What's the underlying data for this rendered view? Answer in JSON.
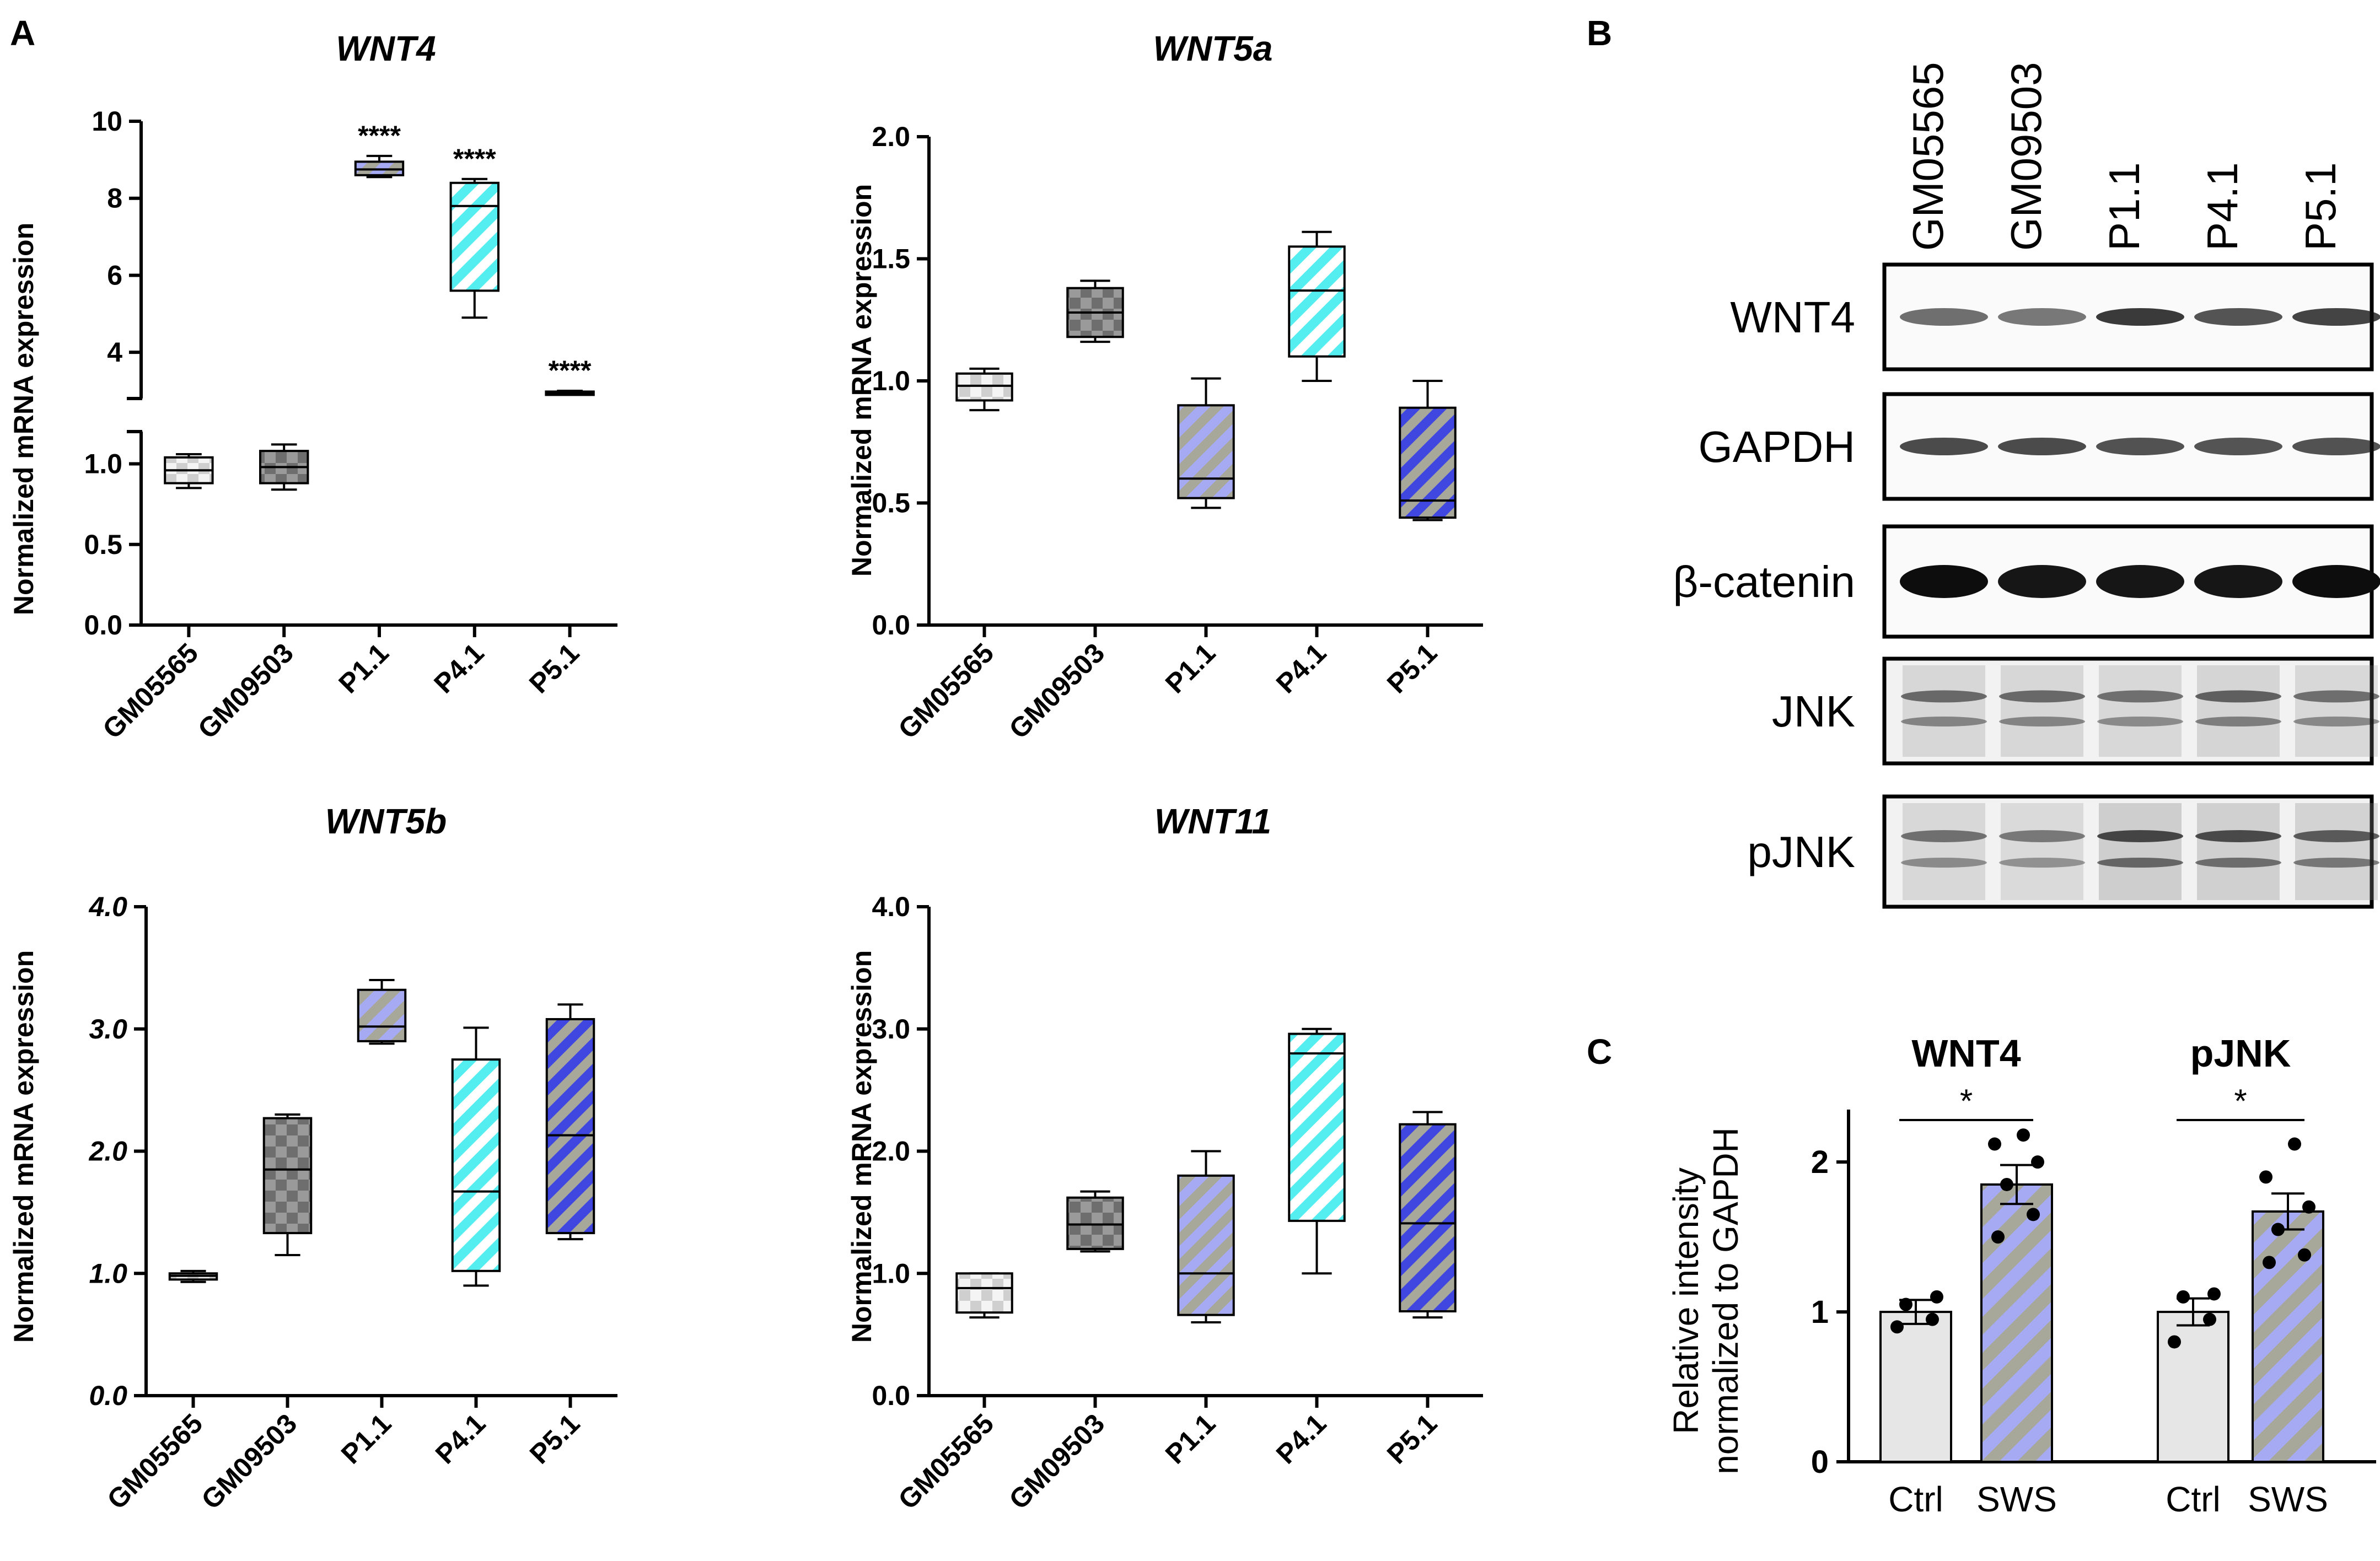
{
  "panel_labels": [
    "A",
    "B",
    "C"
  ],
  "colors": {
    "ctrl1": "#e9e9e9",
    "ctrl2": "#8a8a8a",
    "p11": "#a6aaf2",
    "p41": "#55eef0",
    "p51": "#3f47e0",
    "stripe_grey": "#a7a79a",
    "bar_ctrl": "#e6e6e6",
    "axis": "#000000"
  },
  "chart_data": [
    {
      "type": "box",
      "id": "wnt4",
      "title": "WNT4",
      "ylabel": "Normalized mRNA expression",
      "categories": [
        "GM05565",
        "GM09503",
        "P1.1",
        "P4.1",
        "P5.1"
      ],
      "axis_break": {
        "lower_range": [
          0,
          1.2
        ],
        "upper_range": [
          2.8,
          10
        ]
      },
      "yticks_lower": [
        "0.0",
        "0.5",
        "1.0"
      ],
      "yticks_upper": [
        "4",
        "6",
        "8",
        "10"
      ],
      "boxes": [
        {
          "min": 0.85,
          "q1": 0.88,
          "median": 0.96,
          "q3": 1.04,
          "max": 1.06
        },
        {
          "min": 0.84,
          "q1": 0.88,
          "median": 0.98,
          "q3": 1.08,
          "max": 1.12
        },
        {
          "min": 8.55,
          "q1": 8.6,
          "median": 8.75,
          "q3": 8.95,
          "max": 9.1
        },
        {
          "min": 4.9,
          "q1": 5.6,
          "median": 7.8,
          "q3": 8.4,
          "max": 8.5
        },
        {
          "min": 2.9,
          "q1": 2.92,
          "median": 2.95,
          "q3": 2.98,
          "max": 3.0
        }
      ],
      "annotations": [
        "",
        "",
        "****",
        "****",
        "****"
      ]
    },
    {
      "type": "box",
      "id": "wnt5a",
      "title": "WNT5a",
      "ylabel": "Normalized mRNA expression",
      "categories": [
        "GM05565",
        "GM09503",
        "P1.1",
        "P4.1",
        "P5.1"
      ],
      "ylim": [
        0,
        2.0
      ],
      "yticks": [
        "0.0",
        "0.5",
        "1.0",
        "1.5",
        "2.0"
      ],
      "boxes": [
        {
          "min": 0.88,
          "q1": 0.92,
          "median": 0.98,
          "q3": 1.03,
          "max": 1.05
        },
        {
          "min": 1.16,
          "q1": 1.18,
          "median": 1.28,
          "q3": 1.38,
          "max": 1.41
        },
        {
          "min": 0.48,
          "q1": 0.52,
          "median": 0.6,
          "q3": 0.9,
          "max": 1.01
        },
        {
          "min": 1.0,
          "q1": 1.1,
          "median": 1.37,
          "q3": 1.55,
          "max": 1.61
        },
        {
          "min": 0.43,
          "q1": 0.44,
          "median": 0.51,
          "q3": 0.89,
          "max": 1.0
        }
      ]
    },
    {
      "type": "box",
      "id": "wnt5b",
      "title": "WNT5b",
      "ylabel": "Normalized mRNA expression",
      "categories": [
        "GM05565",
        "GM09503",
        "P1.1",
        "P4.1",
        "P5.1"
      ],
      "ylim": [
        0,
        4.0
      ],
      "yticks": [
        "0.0",
        "1.0",
        "2.0",
        "3.0",
        "4.0"
      ],
      "boxes": [
        {
          "min": 0.93,
          "q1": 0.95,
          "median": 0.98,
          "q3": 1.0,
          "max": 1.02
        },
        {
          "min": 1.15,
          "q1": 1.33,
          "median": 1.85,
          "q3": 2.27,
          "max": 2.3
        },
        {
          "min": 2.88,
          "q1": 2.9,
          "median": 3.02,
          "q3": 3.32,
          "max": 3.4
        },
        {
          "min": 0.9,
          "q1": 1.02,
          "median": 1.67,
          "q3": 2.75,
          "max": 3.01
        },
        {
          "min": 1.28,
          "q1": 1.33,
          "median": 2.13,
          "q3": 3.08,
          "max": 3.2
        }
      ]
    },
    {
      "type": "box",
      "id": "wnt11",
      "title": "WNT11",
      "ylabel": "Normalized mRNA expression",
      "categories": [
        "GM05565",
        "GM09503",
        "P1.1",
        "P4.1",
        "P5.1"
      ],
      "ylim": [
        0,
        4.0
      ],
      "yticks": [
        "0.0",
        "1.0",
        "2.0",
        "3.0",
        "4.0"
      ],
      "boxes": [
        {
          "min": 0.64,
          "q1": 0.68,
          "median": 0.88,
          "q3": 1.0,
          "max": 1.0
        },
        {
          "min": 1.18,
          "q1": 1.2,
          "median": 1.4,
          "q3": 1.62,
          "max": 1.67
        },
        {
          "min": 0.6,
          "q1": 0.66,
          "median": 1.0,
          "q3": 1.8,
          "max": 2.0
        },
        {
          "min": 1.0,
          "q1": 1.43,
          "median": 2.8,
          "q3": 2.96,
          "max": 3.0
        },
        {
          "min": 0.64,
          "q1": 0.69,
          "median": 1.41,
          "q3": 2.22,
          "max": 2.32
        }
      ]
    },
    {
      "type": "bar",
      "id": "quant",
      "ylabel_lines": [
        "Relative intensity",
        "normalized to GAPDH"
      ],
      "ylim": [
        0,
        2.35
      ],
      "yticks": [
        "0",
        "1",
        "2"
      ],
      "groups": [
        {
          "title": "WNT4",
          "significance": "*",
          "bars": [
            {
              "label": "Ctrl",
              "value": 1.0,
              "sem": 0.08,
              "points": [
                0.9,
                0.95,
                1.05,
                1.1
              ]
            },
            {
              "label": "SWS",
              "value": 1.85,
              "sem": 0.13,
              "points": [
                1.5,
                1.65,
                1.85,
                2.0,
                2.12,
                2.18
              ]
            }
          ]
        },
        {
          "title": "pJNK",
          "significance": "*",
          "bars": [
            {
              "label": "Ctrl",
              "value": 1.0,
              "sem": 0.09,
              "points": [
                0.8,
                0.95,
                1.1,
                1.12
              ]
            },
            {
              "label": "SWS",
              "value": 1.67,
              "sem": 0.12,
              "points": [
                1.33,
                1.38,
                1.55,
                1.7,
                1.9,
                2.12
              ]
            }
          ]
        }
      ]
    }
  ],
  "western_blot": {
    "lanes": [
      "GM05565",
      "GM09503",
      "P1.1",
      "P4.1",
      "P5.1"
    ],
    "rows": [
      {
        "label": "WNT4",
        "intensity": [
          0.45,
          0.4,
          0.75,
          0.6,
          0.7
        ]
      },
      {
        "label": "GAPDH",
        "intensity": [
          0.65,
          0.65,
          0.62,
          0.6,
          0.62
        ]
      },
      {
        "label": "β-catenin",
        "intensity": [
          1.0,
          0.95,
          0.95,
          0.95,
          1.0
        ]
      },
      {
        "label": "JNK",
        "intensity": [
          0.45,
          0.45,
          0.4,
          0.5,
          0.42
        ]
      },
      {
        "label": "pJNK",
        "intensity": [
          0.4,
          0.35,
          0.7,
          0.65,
          0.55
        ]
      }
    ]
  }
}
